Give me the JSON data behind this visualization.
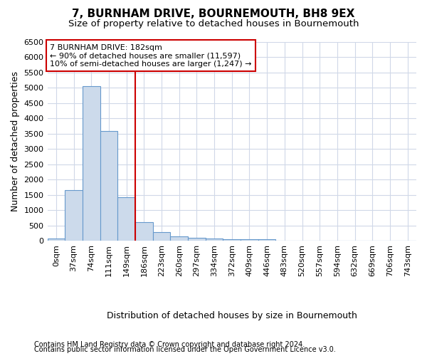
{
  "title": "7, BURNHAM DRIVE, BOURNEMOUTH, BH8 9EX",
  "subtitle": "Size of property relative to detached houses in Bournemouth",
  "xlabel": "Distribution of detached houses by size in Bournemouth",
  "ylabel": "Number of detached properties",
  "footer_line1": "Contains HM Land Registry data © Crown copyright and database right 2024.",
  "footer_line2": "Contains public sector information licensed under the Open Government Licence v3.0.",
  "bin_labels": [
    "0sqm",
    "37sqm",
    "74sqm",
    "111sqm",
    "149sqm",
    "186sqm",
    "223sqm",
    "260sqm",
    "297sqm",
    "334sqm",
    "372sqm",
    "409sqm",
    "446sqm",
    "483sqm",
    "520sqm",
    "557sqm",
    "594sqm",
    "632sqm",
    "669sqm",
    "706sqm",
    "743sqm"
  ],
  "bar_values": [
    75,
    1650,
    5050,
    3600,
    1420,
    620,
    300,
    150,
    110,
    80,
    65,
    60,
    60,
    0,
    0,
    0,
    0,
    0,
    0,
    0,
    0
  ],
  "bar_color": "#ccdaeb",
  "bar_edge_color": "#6699cc",
  "vline_x": 5,
  "vline_color": "#cc0000",
  "annotation_line1": "7 BURNHAM DRIVE: 182sqm",
  "annotation_line2": "← 90% of detached houses are smaller (11,597)",
  "annotation_line3": "10% of semi-detached houses are larger (1,247) →",
  "annotation_box_color": "#ffffff",
  "annotation_box_edge": "#cc0000",
  "ylim": [
    0,
    6500
  ],
  "yticks": [
    0,
    500,
    1000,
    1500,
    2000,
    2500,
    3000,
    3500,
    4000,
    4500,
    5000,
    5500,
    6000,
    6500
  ],
  "bg_color": "#ffffff",
  "plot_bg_color": "#ffffff",
  "grid_color": "#d0d8e8",
  "title_fontsize": 11,
  "subtitle_fontsize": 9.5,
  "axis_label_fontsize": 9,
  "tick_fontsize": 8,
  "footer_fontsize": 7
}
